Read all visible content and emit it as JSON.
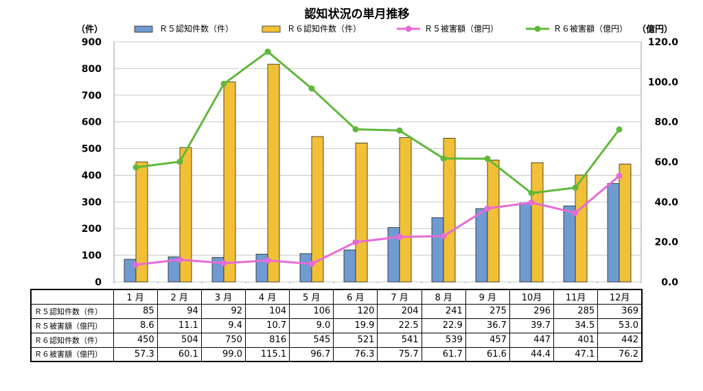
{
  "chart_data": {
    "type": "bar",
    "title": "認知状況の単月推移",
    "y_left_unit": "（件）",
    "y_right_unit": "（億円）",
    "categories": [
      "1月",
      "2月",
      "3月",
      "4月",
      "5月",
      "6月",
      "7月",
      "8月",
      "9月",
      "10月",
      "11月",
      "12月"
    ],
    "y_left_ticks": [
      "0",
      "100",
      "200",
      "300",
      "400",
      "500",
      "600",
      "700",
      "800",
      "900"
    ],
    "y_right_ticks": [
      "0.0",
      "20.0",
      "40.0",
      "60.0",
      "80.0",
      "100.0",
      "120.0"
    ],
    "ylim_left": [
      0,
      900
    ],
    "ylim_right": [
      0,
      120
    ],
    "legend_position": "top",
    "series": [
      {
        "name": "Ｒ５認知件数（件）",
        "kind": "bar",
        "axis": "left",
        "color": "#6f9bd1",
        "values": [
          85,
          94,
          92,
          104,
          106,
          120,
          204,
          241,
          275,
          296,
          285,
          369
        ]
      },
      {
        "name": "Ｒ６認知件数（件）",
        "kind": "bar",
        "axis": "left",
        "color": "#f2c037",
        "values": [
          450,
          504,
          750,
          816,
          545,
          521,
          541,
          539,
          457,
          447,
          401,
          442
        ]
      },
      {
        "name": "Ｒ５被害額（億円）",
        "kind": "line",
        "axis": "right",
        "color": "#e76ad6",
        "values": [
          8.6,
          11.1,
          9.4,
          10.7,
          9.0,
          19.9,
          22.5,
          22.9,
          36.7,
          39.7,
          34.5,
          53.0
        ]
      },
      {
        "name": "Ｒ６被害額（億円）",
        "kind": "line",
        "axis": "right",
        "color": "#5fb83a",
        "values": [
          57.3,
          60.1,
          99.0,
          115.1,
          96.7,
          76.3,
          75.7,
          61.7,
          61.6,
          44.4,
          47.1,
          76.2
        ]
      }
    ]
  },
  "table": {
    "header": [
      "1 月",
      "2 月",
      "3 月",
      "4 月",
      "5 月",
      "6 月",
      "7 月",
      "8 月",
      "9 月",
      "10月",
      "11月",
      "12月"
    ],
    "rows": [
      {
        "label": "Ｒ５認知件数（件）",
        "values": [
          "85",
          "94",
          "92",
          "104",
          "106",
          "120",
          "204",
          "241",
          "275",
          "296",
          "285",
          "369"
        ]
      },
      {
        "label": "Ｒ５被害額（億円）",
        "values": [
          "8.6",
          "11.1",
          "9.4",
          "10.7",
          "9.0",
          "19.9",
          "22.5",
          "22.9",
          "36.7",
          "39.7",
          "34.5",
          "53.0"
        ]
      },
      {
        "label": "Ｒ６認知件数（件）",
        "values": [
          "450",
          "504",
          "750",
          "816",
          "545",
          "521",
          "541",
          "539",
          "457",
          "447",
          "401",
          "442"
        ]
      },
      {
        "label": "Ｒ６被害額（億円）",
        "values": [
          "57.3",
          "60.1",
          "99.0",
          "115.1",
          "96.7",
          "76.3",
          "75.7",
          "61.7",
          "61.6",
          "44.4",
          "47.1",
          "76.2"
        ]
      }
    ]
  }
}
